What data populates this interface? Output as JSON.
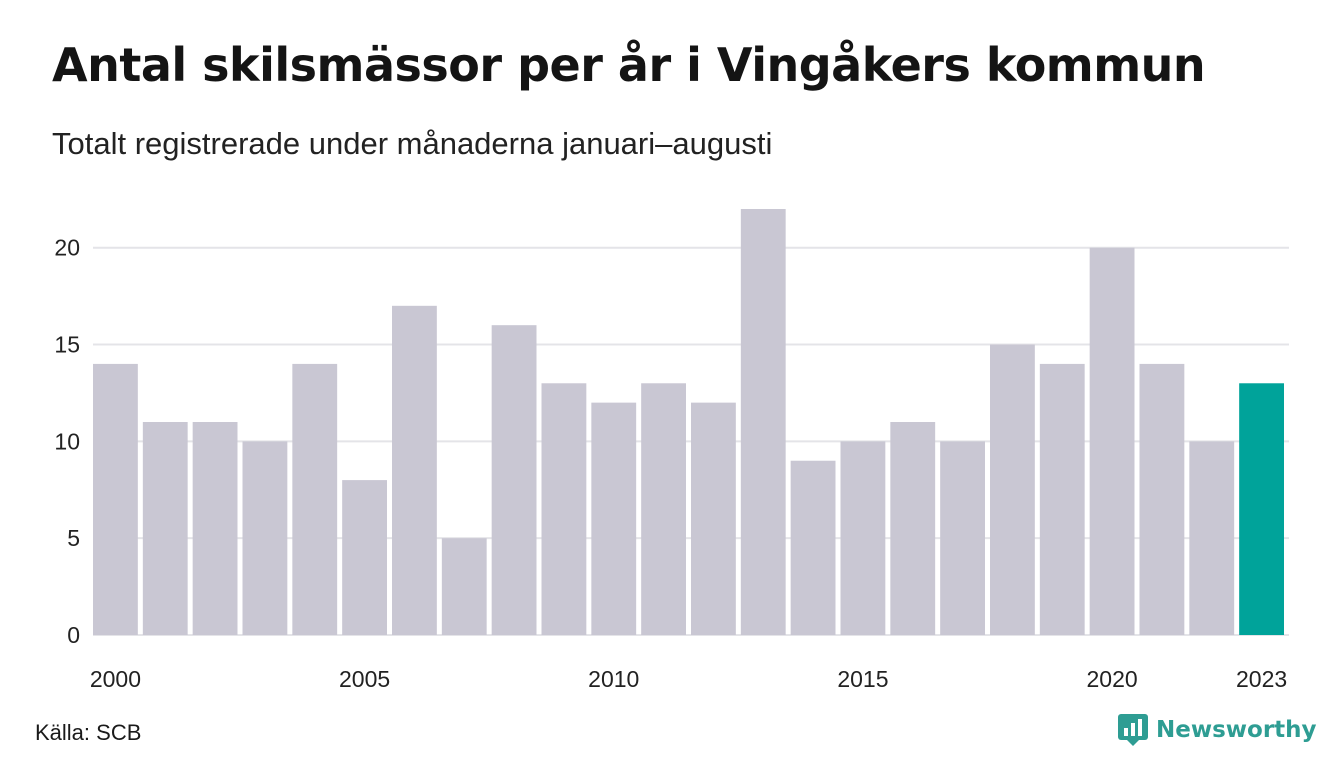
{
  "chart_data": {
    "type": "bar",
    "title": "Antal skilsmässor per år i Vingåkers kommun",
    "subtitle": "Totalt registrerade under månaderna januari–augusti",
    "categories": [
      "2000",
      "2001",
      "2002",
      "2003",
      "2004",
      "2005",
      "2006",
      "2007",
      "2008",
      "2009",
      "2010",
      "2011",
      "2012",
      "2013",
      "2014",
      "2015",
      "2016",
      "2017",
      "2018",
      "2019",
      "2020",
      "2021",
      "2022",
      "2023"
    ],
    "values": [
      14,
      11,
      11,
      10,
      14,
      8,
      17,
      5,
      16,
      13,
      12,
      13,
      12,
      22,
      9,
      10,
      11,
      10,
      15,
      14,
      20,
      14,
      10,
      13
    ],
    "x_tick_labels": [
      "2000",
      "2005",
      "2010",
      "2015",
      "2020",
      "2023"
    ],
    "y_ticks": [
      0,
      5,
      10,
      15,
      20
    ],
    "ylim": [
      0,
      22
    ],
    "xlabel": "",
    "ylabel": "",
    "grid": "horizontal",
    "highlight_category": "2023",
    "colors": {
      "bar": "#c9c7d3",
      "highlight": "#00a39a",
      "grid": "#e4e4e8"
    }
  },
  "footer": {
    "source": "Källa: SCB",
    "brand": "Newsworthy",
    "brand_icon": "newsworthy-logo-icon",
    "brand_color": "#2e9d93"
  }
}
